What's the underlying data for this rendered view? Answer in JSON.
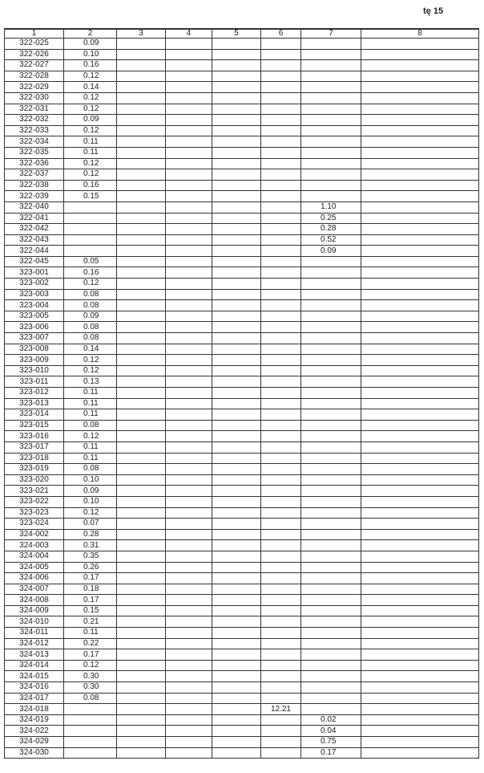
{
  "page_number": "tę 15",
  "headers": [
    "1",
    "2",
    "3",
    "4",
    "5",
    "6",
    "7",
    "8"
  ],
  "rows": [
    [
      "322-025",
      "0.09",
      "",
      "",
      "",
      "",
      "",
      ""
    ],
    [
      "322-026",
      "0.10",
      "",
      "",
      "",
      "",
      "",
      ""
    ],
    [
      "322-027",
      "0.16",
      "",
      "",
      "",
      "",
      "",
      ""
    ],
    [
      "322-028",
      "0.12",
      "",
      "",
      "",
      "",
      "",
      ""
    ],
    [
      "322-029",
      "0.14",
      "",
      "",
      "",
      "",
      "",
      ""
    ],
    [
      "322-030",
      "0.12",
      "",
      "",
      "",
      "",
      "",
      ""
    ],
    [
      "322-031",
      "0.12",
      "",
      "",
      "",
      "",
      "",
      ""
    ],
    [
      "322-032",
      "0.09",
      "",
      "",
      "",
      "",
      "",
      ""
    ],
    [
      "322-033",
      "0.12",
      "",
      "",
      "",
      "",
      "",
      ""
    ],
    [
      "322-034",
      "0.11",
      "",
      "",
      "",
      "",
      "",
      ""
    ],
    [
      "322-035",
      "0.11",
      "",
      "",
      "",
      "",
      "",
      ""
    ],
    [
      "322-036",
      "0.12",
      "",
      "",
      "",
      "",
      "",
      ""
    ],
    [
      "322-037",
      "0.12",
      "",
      "",
      "",
      "",
      "",
      ""
    ],
    [
      "322-038",
      "0.16",
      "",
      "",
      "",
      "",
      "",
      ""
    ],
    [
      "322-039",
      "0.15",
      "",
      "",
      "",
      "",
      "",
      ""
    ],
    [
      "322-040",
      "",
      "",
      "",
      "",
      "",
      "1.10",
      ""
    ],
    [
      "322-041",
      "",
      "",
      "",
      "",
      "",
      "0.25",
      ""
    ],
    [
      "322-042",
      "",
      "",
      "",
      "",
      "",
      "0.28",
      ""
    ],
    [
      "322-043",
      "",
      "",
      "",
      "",
      "",
      "0.52",
      ""
    ],
    [
      "322-044",
      "",
      "",
      "",
      "",
      "",
      "0.09",
      ""
    ],
    [
      "322-045",
      "0.05",
      "",
      "",
      "",
      "",
      "",
      ""
    ],
    [
      "323-001",
      "0.16",
      "",
      "",
      "",
      "",
      "",
      ""
    ],
    [
      "323-002",
      "0.12",
      "",
      "",
      "",
      "",
      "",
      ""
    ],
    [
      "323-003",
      "0.08",
      "",
      "",
      "",
      "",
      "",
      ""
    ],
    [
      "323-004",
      "0.08",
      "",
      "",
      "",
      "",
      "",
      ""
    ],
    [
      "323-005",
      "0.09",
      "",
      "",
      "",
      "",
      "",
      ""
    ],
    [
      "323-006",
      "0.08",
      "",
      "",
      "",
      "",
      "",
      ""
    ],
    [
      "323-007",
      "0.08",
      "",
      "",
      "",
      "",
      "",
      ""
    ],
    [
      "323-008",
      "0.14",
      "",
      "",
      "",
      "",
      "",
      ""
    ],
    [
      "323-009",
      "0.12",
      "",
      "",
      "",
      "",
      "",
      ""
    ],
    [
      "323-010",
      "0.12",
      "",
      "",
      "",
      "",
      "",
      ""
    ],
    [
      "323-011",
      "0.13",
      "",
      "",
      "",
      "",
      "",
      ""
    ],
    [
      "323-012",
      "0.11",
      "",
      "",
      "",
      "",
      "",
      ""
    ],
    [
      "323-013",
      "0.11",
      "",
      "",
      "",
      "",
      "",
      ""
    ],
    [
      "323-014",
      "0.11",
      "",
      "",
      "",
      "",
      "",
      ""
    ],
    [
      "323-015",
      "0.08",
      "",
      "",
      "",
      "",
      "",
      ""
    ],
    [
      "323-016",
      "0.12",
      "",
      "",
      "",
      "",
      "",
      ""
    ],
    [
      "323-017",
      "0.11",
      "",
      "",
      "",
      "",
      "",
      ""
    ],
    [
      "323-018",
      "0.11",
      "",
      "",
      "",
      "",
      "",
      ""
    ],
    [
      "323-019",
      "0.08",
      "",
      "",
      "",
      "",
      "",
      ""
    ],
    [
      "323-020",
      "0.10",
      "",
      "",
      "",
      "",
      "",
      ""
    ],
    [
      "323-021",
      "0.09",
      "",
      "",
      "",
      "",
      "",
      ""
    ],
    [
      "323-022",
      "0.10",
      "",
      "",
      "",
      "",
      "",
      ""
    ],
    [
      "323-023",
      "0.12",
      "",
      "",
      "",
      "",
      "",
      ""
    ],
    [
      "323-024",
      "0.07",
      "",
      "",
      "",
      "",
      "",
      ""
    ],
    [
      "324-002",
      "0.28",
      "",
      "",
      "",
      "",
      "",
      ""
    ],
    [
      "324-003",
      "0.31",
      "",
      "",
      "",
      "",
      "",
      ""
    ],
    [
      "324-004",
      "0.35",
      "",
      "",
      "",
      "",
      "",
      ""
    ],
    [
      "324-005",
      "0.26",
      "",
      "",
      "",
      "",
      "",
      ""
    ],
    [
      "324-006",
      "0.17",
      "",
      "",
      "",
      "",
      "",
      ""
    ],
    [
      "324-007",
      "0.18",
      "",
      "",
      "",
      "",
      "",
      ""
    ],
    [
      "324-008",
      "0.17",
      "",
      "",
      "",
      "",
      "",
      ""
    ],
    [
      "324-009",
      "0.15",
      "",
      "",
      "",
      "",
      "",
      ""
    ],
    [
      "324-010",
      "0.21",
      "",
      "",
      "",
      "",
      "",
      ""
    ],
    [
      "324-011",
      "0.11",
      "",
      "",
      "",
      "",
      "",
      ""
    ],
    [
      "324-012",
      "0.22",
      "",
      "",
      "",
      "",
      "",
      ""
    ],
    [
      "324-013",
      "0.17",
      "",
      "",
      "",
      "",
      "",
      ""
    ],
    [
      "324-014",
      "0.12",
      "",
      "",
      "",
      "",
      "",
      ""
    ],
    [
      "324-015",
      "0.30",
      "",
      "",
      "",
      "",
      "",
      ""
    ],
    [
      "324-016",
      "0.30",
      "",
      "",
      "",
      "",
      "",
      ""
    ],
    [
      "324-017",
      "0.08",
      "",
      "",
      "",
      "",
      "",
      ""
    ],
    [
      "324-018",
      "",
      "",
      "",
      "",
      "12.21",
      "",
      ""
    ],
    [
      "324-019",
      "",
      "",
      "",
      "",
      "",
      "0.02",
      ""
    ],
    [
      "324-022",
      "",
      "",
      "",
      "",
      "",
      "0.04",
      ""
    ],
    [
      "324-029",
      "",
      "",
      "",
      "",
      "",
      "0.75",
      ""
    ],
    [
      "324-030",
      "",
      "",
      "",
      "",
      "",
      "0.17",
      ""
    ]
  ]
}
